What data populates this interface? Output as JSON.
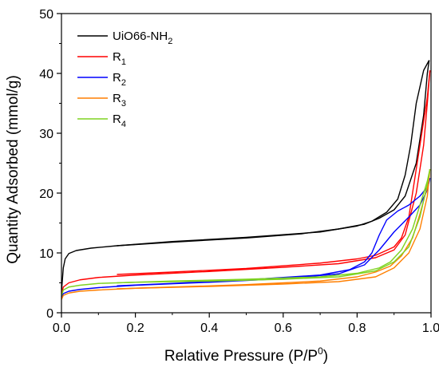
{
  "chart_data": {
    "type": "line",
    "xlabel": {
      "text": "Relative Pressure (P/P",
      "sup": "0",
      "tail": ")"
    },
    "ylabel": "Quantity Adsorbed (mmol/g)",
    "xlim": [
      0,
      1.0
    ],
    "ylim": [
      0,
      50
    ],
    "xticks": [
      0.0,
      0.2,
      0.4,
      0.6,
      0.8,
      1.0
    ],
    "xtick_labels": [
      "0.0",
      "0.2",
      "0.4",
      "0.6",
      "0.8",
      "1.0"
    ],
    "yticks": [
      0,
      10,
      20,
      30,
      40,
      50
    ],
    "ytick_labels": [
      "0",
      "10",
      "20",
      "30",
      "40",
      "50"
    ],
    "grid": false,
    "legend_position": "top-left",
    "series": [
      {
        "name": "UiO66-NH",
        "name_sub": "2",
        "color": "#000000",
        "adsorption": [
          [
            0.0,
            3.5
          ],
          [
            0.005,
            7.5
          ],
          [
            0.01,
            9.0
          ],
          [
            0.02,
            9.9
          ],
          [
            0.04,
            10.4
          ],
          [
            0.08,
            10.8
          ],
          [
            0.15,
            11.2
          ],
          [
            0.3,
            11.8
          ],
          [
            0.5,
            12.5
          ],
          [
            0.65,
            13.2
          ],
          [
            0.75,
            14.0
          ],
          [
            0.82,
            14.8
          ],
          [
            0.86,
            15.8
          ],
          [
            0.9,
            17.2
          ],
          [
            0.93,
            19.5
          ],
          [
            0.96,
            25.0
          ],
          [
            0.98,
            33.0
          ],
          [
            0.99,
            40.0
          ],
          [
            0.995,
            42.2
          ]
        ],
        "desorption": [
          [
            0.995,
            42.2
          ],
          [
            0.98,
            40.5
          ],
          [
            0.96,
            35.0
          ],
          [
            0.945,
            28.0
          ],
          [
            0.93,
            23.0
          ],
          [
            0.91,
            19.0
          ],
          [
            0.88,
            16.8
          ],
          [
            0.84,
            15.3
          ],
          [
            0.8,
            14.5
          ],
          [
            0.7,
            13.5
          ],
          [
            0.5,
            12.6
          ],
          [
            0.3,
            11.9
          ],
          [
            0.15,
            11.2
          ]
        ]
      },
      {
        "name": "R",
        "name_sub": "1",
        "color": "#ff0000",
        "adsorption": [
          [
            0.0,
            3.0
          ],
          [
            0.005,
            4.3
          ],
          [
            0.02,
            5.0
          ],
          [
            0.05,
            5.5
          ],
          [
            0.1,
            5.9
          ],
          [
            0.2,
            6.3
          ],
          [
            0.4,
            6.9
          ],
          [
            0.6,
            7.6
          ],
          [
            0.75,
            8.2
          ],
          [
            0.85,
            9.2
          ],
          [
            0.9,
            10.5
          ],
          [
            0.93,
            13.0
          ],
          [
            0.96,
            20.0
          ],
          [
            0.98,
            28.0
          ],
          [
            0.99,
            35.0
          ],
          [
            0.997,
            40.5
          ]
        ],
        "desorption": [
          [
            0.997,
            40.5
          ],
          [
            0.99,
            36.0
          ],
          [
            0.98,
            32.0
          ],
          [
            0.96,
            24.0
          ],
          [
            0.94,
            16.0
          ],
          [
            0.92,
            12.5
          ],
          [
            0.9,
            11.0
          ],
          [
            0.85,
            9.6
          ],
          [
            0.8,
            9.0
          ],
          [
            0.7,
            8.3
          ],
          [
            0.5,
            7.4
          ],
          [
            0.3,
            6.8
          ],
          [
            0.15,
            6.4
          ]
        ]
      },
      {
        "name": "R",
        "name_sub": "2",
        "color": "#0000ff",
        "adsorption": [
          [
            0.0,
            2.5
          ],
          [
            0.005,
            3.2
          ],
          [
            0.02,
            3.6
          ],
          [
            0.05,
            3.9
          ],
          [
            0.1,
            4.2
          ],
          [
            0.2,
            4.6
          ],
          [
            0.4,
            5.1
          ],
          [
            0.6,
            5.7
          ],
          [
            0.75,
            6.5
          ],
          [
            0.82,
            8.0
          ],
          [
            0.86,
            10.5
          ],
          [
            0.9,
            13.5
          ],
          [
            0.94,
            16.0
          ],
          [
            0.97,
            18.0
          ],
          [
            0.99,
            20.5
          ],
          [
            0.997,
            22.5
          ]
        ],
        "desorption": [
          [
            0.997,
            22.5
          ],
          [
            0.99,
            21.0
          ],
          [
            0.97,
            19.5
          ],
          [
            0.94,
            18.0
          ],
          [
            0.91,
            17.0
          ],
          [
            0.88,
            15.5
          ],
          [
            0.86,
            13.0
          ],
          [
            0.84,
            10.0
          ],
          [
            0.82,
            8.5
          ],
          [
            0.78,
            7.2
          ],
          [
            0.7,
            6.3
          ],
          [
            0.5,
            5.5
          ],
          [
            0.3,
            4.9
          ],
          [
            0.15,
            4.5
          ]
        ]
      },
      {
        "name": "R",
        "name_sub": "3",
        "color": "#ff7f00",
        "adsorption": [
          [
            0.0,
            2.2
          ],
          [
            0.005,
            2.9
          ],
          [
            0.02,
            3.3
          ],
          [
            0.05,
            3.6
          ],
          [
            0.1,
            3.8
          ],
          [
            0.2,
            4.1
          ],
          [
            0.4,
            4.4
          ],
          [
            0.6,
            4.8
          ],
          [
            0.75,
            5.2
          ],
          [
            0.85,
            6.0
          ],
          [
            0.9,
            7.5
          ],
          [
            0.94,
            10.0
          ],
          [
            0.97,
            14.0
          ],
          [
            0.99,
            19.5
          ],
          [
            0.997,
            24.0
          ]
        ],
        "desorption": [
          [
            0.997,
            24.0
          ],
          [
            0.99,
            21.0
          ],
          [
            0.97,
            16.5
          ],
          [
            0.95,
            12.5
          ],
          [
            0.92,
            9.5
          ],
          [
            0.89,
            7.8
          ],
          [
            0.85,
            6.8
          ],
          [
            0.8,
            6.0
          ],
          [
            0.7,
            5.3
          ],
          [
            0.5,
            4.7
          ],
          [
            0.3,
            4.3
          ],
          [
            0.15,
            4.0
          ]
        ]
      },
      {
        "name": "R",
        "name_sub": "4",
        "color": "#7ed321",
        "adsorption": [
          [
            0.0,
            2.8
          ],
          [
            0.005,
            3.8
          ],
          [
            0.02,
            4.3
          ],
          [
            0.05,
            4.6
          ],
          [
            0.1,
            4.9
          ],
          [
            0.2,
            5.1
          ],
          [
            0.4,
            5.3
          ],
          [
            0.6,
            5.6
          ],
          [
            0.75,
            6.0
          ],
          [
            0.85,
            7.0
          ],
          [
            0.9,
            8.5
          ],
          [
            0.94,
            11.0
          ],
          [
            0.97,
            16.0
          ],
          [
            0.99,
            21.5
          ],
          [
            0.997,
            24.0
          ]
        ],
        "desorption": [
          [
            0.997,
            24.0
          ],
          [
            0.99,
            22.0
          ],
          [
            0.97,
            18.0
          ],
          [
            0.95,
            14.0
          ],
          [
            0.92,
            10.5
          ],
          [
            0.89,
            8.5
          ],
          [
            0.86,
            7.5
          ],
          [
            0.8,
            6.6
          ],
          [
            0.7,
            6.0
          ],
          [
            0.5,
            5.6
          ],
          [
            0.3,
            5.3
          ],
          [
            0.15,
            5.0
          ]
        ]
      }
    ]
  }
}
